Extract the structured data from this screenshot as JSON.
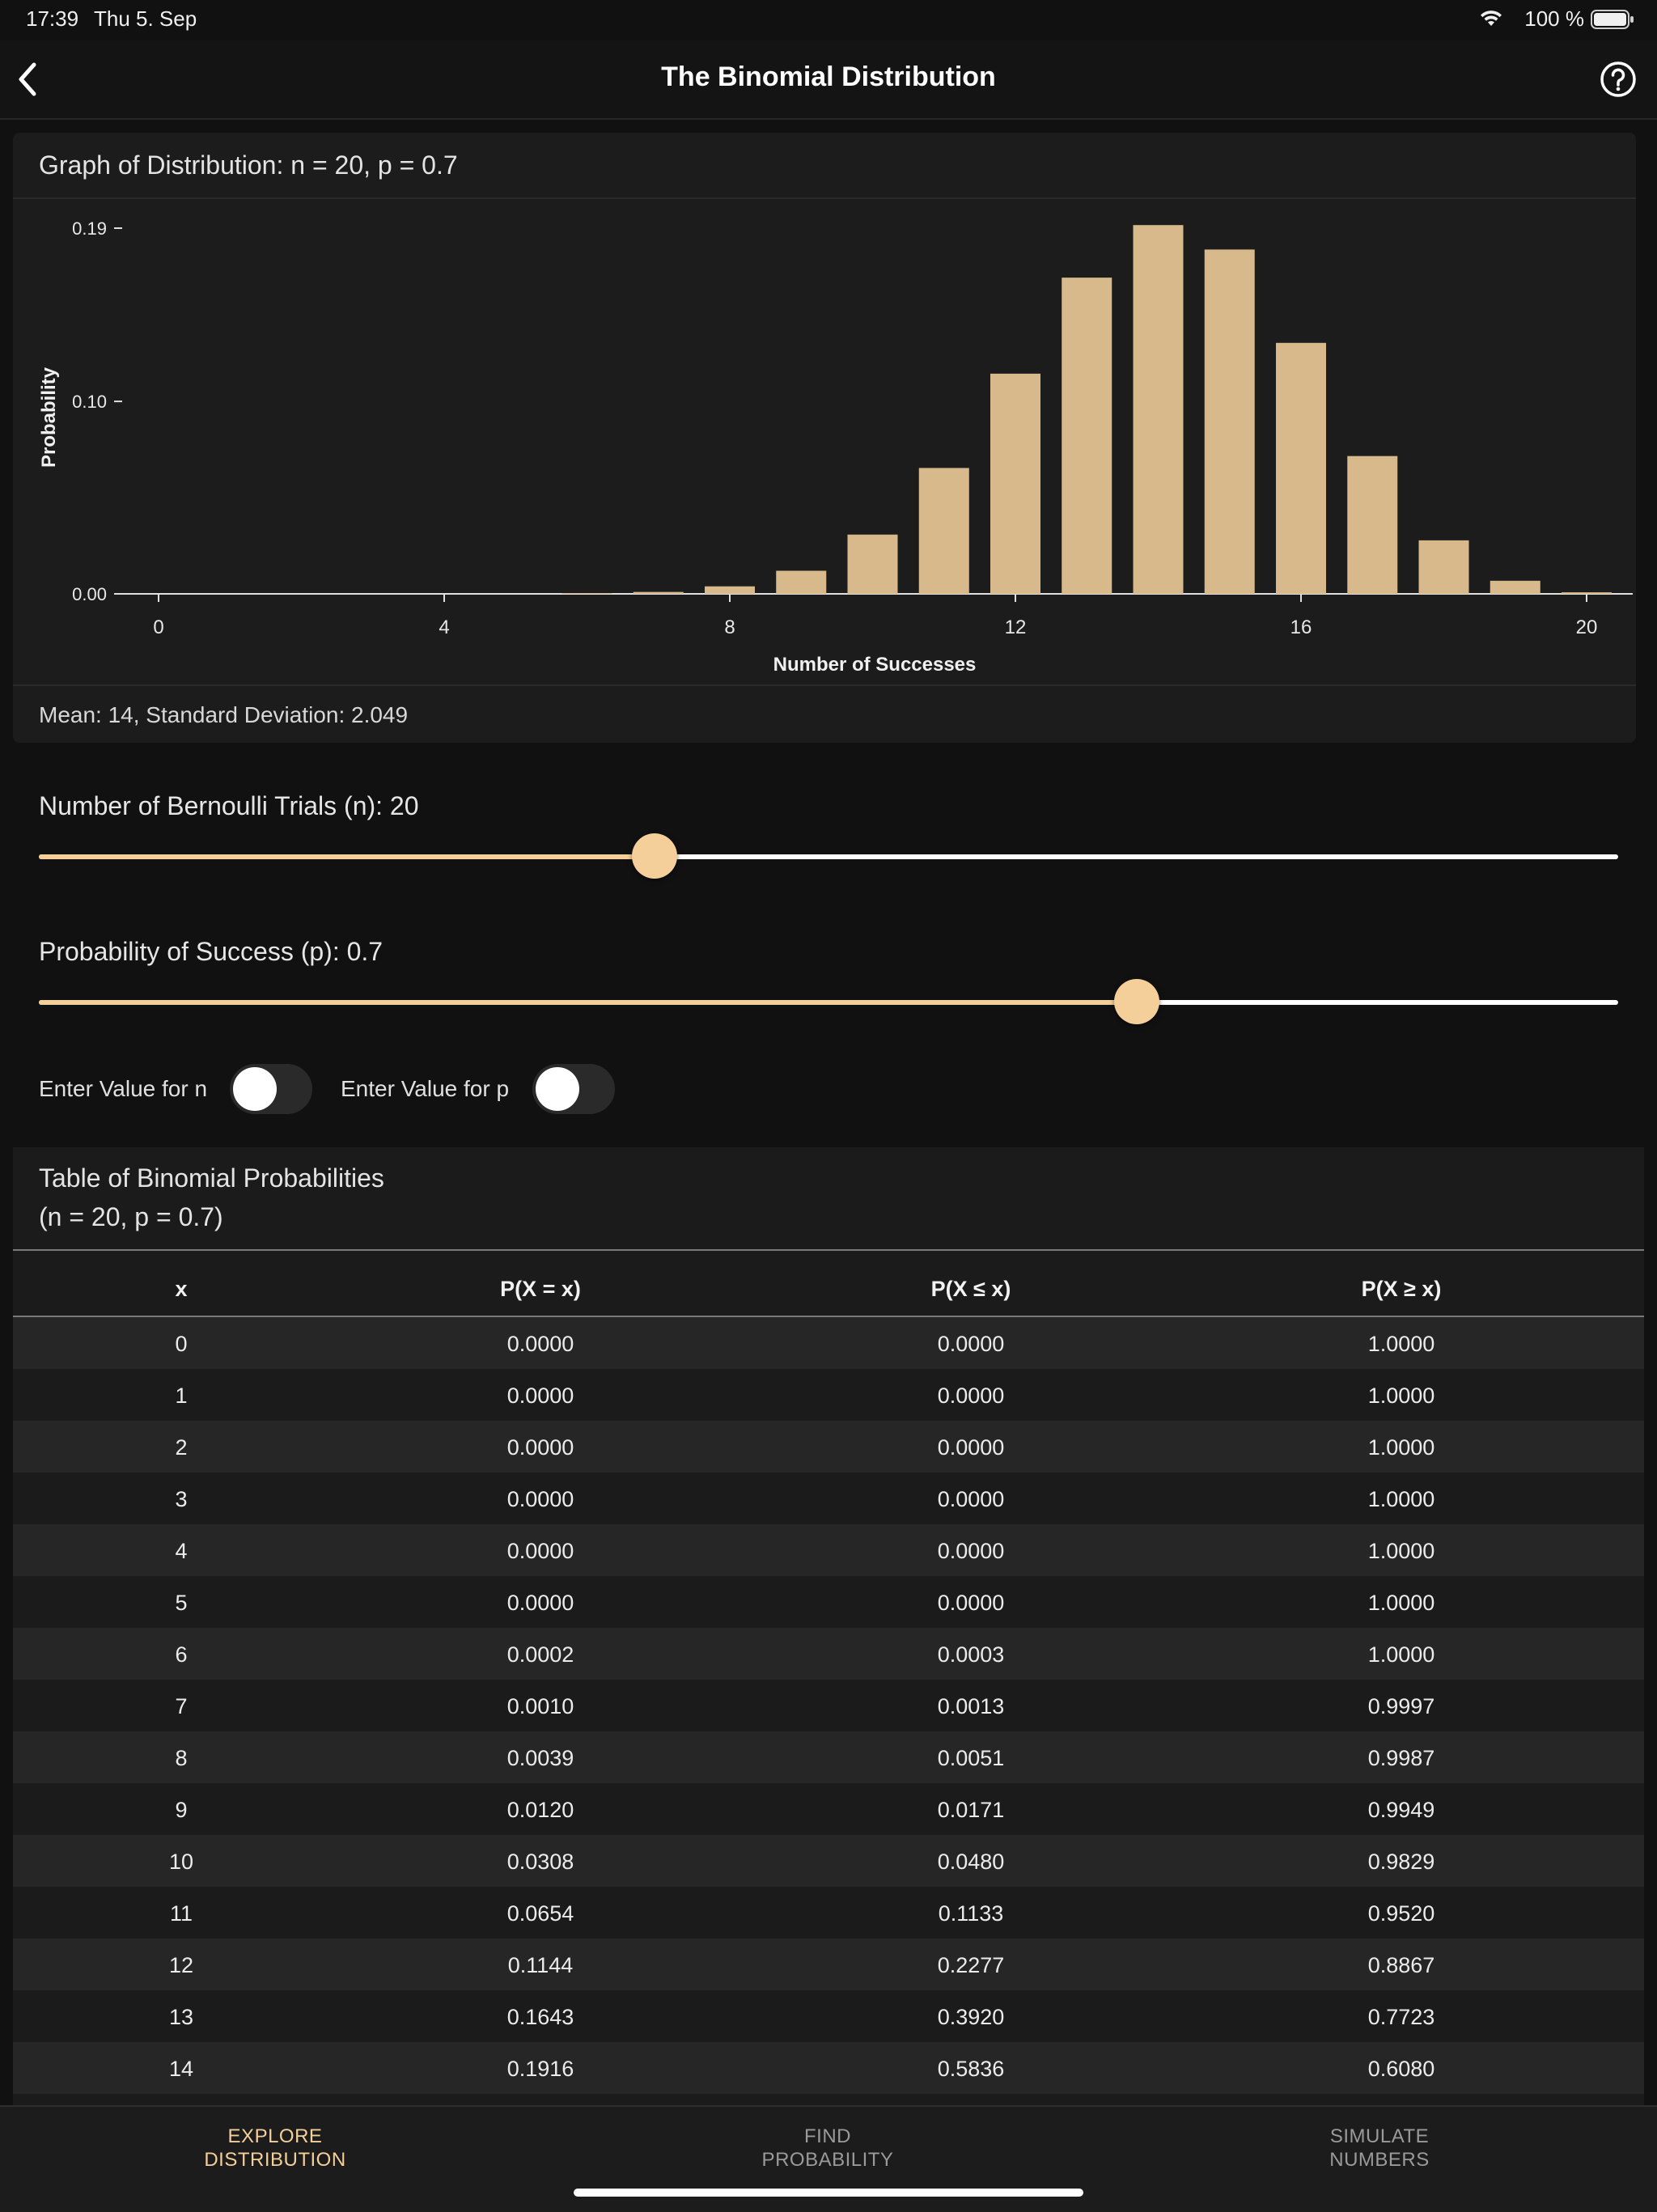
{
  "status_bar": {
    "time": "17:39",
    "date": "Thu 5. Sep",
    "battery": "100 %"
  },
  "nav": {
    "title": "The Binomial Distribution"
  },
  "graph_card": {
    "header": "Graph of Distribution: n = 20, p = 0.7",
    "footer": "Mean: 14, Standard Deviation: 2.049"
  },
  "chart_data": {
    "type": "bar",
    "xlabel": "Number of Successes",
    "ylabel": "Probability",
    "xticks": [
      "0",
      "4",
      "8",
      "12",
      "16",
      "20"
    ],
    "yticks": [
      "0.00",
      "0.10",
      "0.19"
    ],
    "ylim": [
      0,
      0.19
    ],
    "categories": [
      0,
      1,
      2,
      3,
      4,
      5,
      6,
      7,
      8,
      9,
      10,
      11,
      12,
      13,
      14,
      15,
      16,
      17,
      18,
      19,
      20
    ],
    "values": [
      0.0,
      0.0,
      0.0,
      0.0,
      0.0,
      0.0,
      0.0002,
      0.001,
      0.0039,
      0.012,
      0.0308,
      0.0654,
      0.1144,
      0.1643,
      0.1916,
      0.1789,
      0.1304,
      0.0716,
      0.0278,
      0.0068,
      0.0008
    ],
    "bar_color": "#d8b98c"
  },
  "sliders": {
    "n": {
      "label": "Number of Bernoulli Trials (n): 20",
      "fraction": 0.39
    },
    "p": {
      "label": "Probability of Success (p): 0.7",
      "fraction": 0.695
    }
  },
  "toggles": {
    "n": {
      "label": "Enter Value for n",
      "on": false
    },
    "p": {
      "label": "Enter Value for p",
      "on": false
    }
  },
  "table": {
    "title": "Table of Binomial Probabilities",
    "subtitle": "(n = 20, p = 0.7)",
    "columns": [
      "x",
      "P(X = x)",
      "P(X ≤ x)",
      "P(X ≥ x)"
    ],
    "rows": [
      [
        "0",
        "0.0000",
        "0.0000",
        "1.0000"
      ],
      [
        "1",
        "0.0000",
        "0.0000",
        "1.0000"
      ],
      [
        "2",
        "0.0000",
        "0.0000",
        "1.0000"
      ],
      [
        "3",
        "0.0000",
        "0.0000",
        "1.0000"
      ],
      [
        "4",
        "0.0000",
        "0.0000",
        "1.0000"
      ],
      [
        "5",
        "0.0000",
        "0.0000",
        "1.0000"
      ],
      [
        "6",
        "0.0002",
        "0.0003",
        "1.0000"
      ],
      [
        "7",
        "0.0010",
        "0.0013",
        "0.9997"
      ],
      [
        "8",
        "0.0039",
        "0.0051",
        "0.9987"
      ],
      [
        "9",
        "0.0120",
        "0.0171",
        "0.9949"
      ],
      [
        "10",
        "0.0308",
        "0.0480",
        "0.9829"
      ],
      [
        "11",
        "0.0654",
        "0.1133",
        "0.9520"
      ],
      [
        "12",
        "0.1144",
        "0.2277",
        "0.8867"
      ],
      [
        "13",
        "0.1643",
        "0.3920",
        "0.7723"
      ],
      [
        "14",
        "0.1916",
        "0.5836",
        "0.6080"
      ]
    ]
  },
  "tabs": [
    {
      "line1": "EXPLORE",
      "line2": "DISTRIBUTION",
      "active": true
    },
    {
      "line1": "FIND",
      "line2": "PROBABILITY",
      "active": false
    },
    {
      "line1": "SIMULATE",
      "line2": "NUMBERS",
      "active": false
    }
  ],
  "colors": {
    "accent": "#f5cf9a",
    "background": "#111111",
    "card": "#1c1c1c",
    "inactive_tab": "#9a9a9a"
  }
}
